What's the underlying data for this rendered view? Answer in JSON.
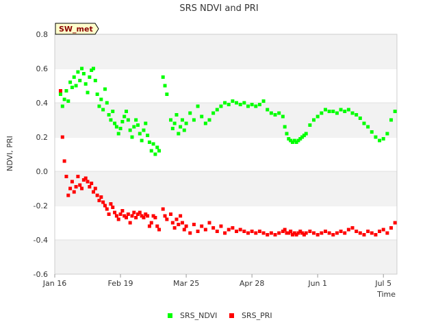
{
  "chart_data": {
    "type": "scatter",
    "title": "SRS NDVI and PRI",
    "site_label": "SW_met",
    "xlabel": "Time",
    "ylabel": "NDVI, PRI",
    "x_ticks": [
      "Jan 16",
      "Feb 19",
      "Mar 25",
      "Apr 28",
      "Jun 1",
      "Jul 5"
    ],
    "x_tick_days": [
      0,
      34,
      68,
      102,
      136,
      170
    ],
    "x_range_days": [
      0,
      177
    ],
    "xlim": [
      "Jan 16",
      "Jul 12"
    ],
    "y_ticks": [
      "-0.6",
      "-0.4",
      "-0.2",
      "0.0",
      "0.2",
      "0.4",
      "0.6",
      "0.8"
    ],
    "ylim": [
      -0.6,
      0.8
    ],
    "grid": "horizontal bands",
    "legend_position": "bottom-center",
    "colors": {
      "ndvi": "#00ff00",
      "pri": "#ff0000",
      "band": "#f2f2f2",
      "site_bg": "#ffffcc"
    },
    "series": [
      {
        "name": "SRS_NDVI",
        "color": "#00ff00",
        "points": [
          [
            3,
            0.45
          ],
          [
            4,
            0.38
          ],
          [
            5,
            0.42
          ],
          [
            6,
            0.47
          ],
          [
            7,
            0.41
          ],
          [
            8,
            0.52
          ],
          [
            9,
            0.49
          ],
          [
            10,
            0.55
          ],
          [
            11,
            0.5
          ],
          [
            12,
            0.58
          ],
          [
            13,
            0.53
          ],
          [
            14,
            0.6
          ],
          [
            15,
            0.57
          ],
          [
            16,
            0.51
          ],
          [
            17,
            0.46
          ],
          [
            18,
            0.55
          ],
          [
            19,
            0.59
          ],
          [
            20,
            0.6
          ],
          [
            21,
            0.53
          ],
          [
            22,
            0.45
          ],
          [
            23,
            0.38
          ],
          [
            24,
            0.42
          ],
          [
            25,
            0.36
          ],
          [
            26,
            0.48
          ],
          [
            27,
            0.4
          ],
          [
            28,
            0.33
          ],
          [
            29,
            0.3
          ],
          [
            30,
            0.35
          ],
          [
            31,
            0.28
          ],
          [
            32,
            0.26
          ],
          [
            33,
            0.22
          ],
          [
            34,
            0.25
          ],
          [
            35,
            0.29
          ],
          [
            36,
            0.32
          ],
          [
            37,
            0.35
          ],
          [
            38,
            0.3
          ],
          [
            39,
            0.24
          ],
          [
            40,
            0.2
          ],
          [
            41,
            0.26
          ],
          [
            42,
            0.3
          ],
          [
            43,
            0.27
          ],
          [
            44,
            0.22
          ],
          [
            45,
            0.18
          ],
          [
            46,
            0.24
          ],
          [
            47,
            0.28
          ],
          [
            48,
            0.21
          ],
          [
            49,
            0.17
          ],
          [
            50,
            0.12
          ],
          [
            51,
            0.16
          ],
          [
            52,
            0.1
          ],
          [
            53,
            0.14
          ],
          [
            54,
            0.12
          ],
          [
            56,
            0.55
          ],
          [
            57,
            0.5
          ],
          [
            58,
            0.45
          ],
          [
            60,
            0.3
          ],
          [
            61,
            0.25
          ],
          [
            62,
            0.28
          ],
          [
            63,
            0.33
          ],
          [
            64,
            0.22
          ],
          [
            65,
            0.26
          ],
          [
            66,
            0.3
          ],
          [
            67,
            0.24
          ],
          [
            68,
            0.28
          ],
          [
            70,
            0.34
          ],
          [
            72,
            0.3
          ],
          [
            74,
            0.38
          ],
          [
            76,
            0.32
          ],
          [
            78,
            0.28
          ],
          [
            80,
            0.3
          ],
          [
            82,
            0.34
          ],
          [
            84,
            0.36
          ],
          [
            86,
            0.38
          ],
          [
            88,
            0.4
          ],
          [
            90,
            0.39
          ],
          [
            92,
            0.41
          ],
          [
            94,
            0.4
          ],
          [
            96,
            0.39
          ],
          [
            98,
            0.4
          ],
          [
            100,
            0.38
          ],
          [
            102,
            0.39
          ],
          [
            104,
            0.38
          ],
          [
            106,
            0.39
          ],
          [
            108,
            0.41
          ],
          [
            110,
            0.36
          ],
          [
            112,
            0.34
          ],
          [
            114,
            0.33
          ],
          [
            116,
            0.34
          ],
          [
            118,
            0.32
          ],
          [
            119,
            0.26
          ],
          [
            120,
            0.22
          ],
          [
            121,
            0.19
          ],
          [
            122,
            0.18
          ],
          [
            123,
            0.17
          ],
          [
            124,
            0.18
          ],
          [
            125,
            0.17
          ],
          [
            126,
            0.18
          ],
          [
            127,
            0.19
          ],
          [
            128,
            0.2
          ],
          [
            129,
            0.21
          ],
          [
            130,
            0.22
          ],
          [
            132,
            0.27
          ],
          [
            134,
            0.3
          ],
          [
            136,
            0.32
          ],
          [
            138,
            0.34
          ],
          [
            140,
            0.36
          ],
          [
            142,
            0.35
          ],
          [
            144,
            0.35
          ],
          [
            146,
            0.34
          ],
          [
            148,
            0.36
          ],
          [
            150,
            0.35
          ],
          [
            152,
            0.36
          ],
          [
            154,
            0.34
          ],
          [
            156,
            0.33
          ],
          [
            158,
            0.31
          ],
          [
            160,
            0.28
          ],
          [
            162,
            0.26
          ],
          [
            164,
            0.23
          ],
          [
            166,
            0.2
          ],
          [
            168,
            0.18
          ],
          [
            170,
            0.19
          ],
          [
            172,
            0.22
          ],
          [
            174,
            0.3
          ],
          [
            176,
            0.35
          ]
        ]
      },
      {
        "name": "SRS_PRI",
        "color": "#ff0000",
        "points": [
          [
            3,
            0.47
          ],
          [
            4,
            0.2
          ],
          [
            5,
            0.06
          ],
          [
            6,
            -0.03
          ],
          [
            7,
            -0.14
          ],
          [
            8,
            -0.1
          ],
          [
            9,
            -0.06
          ],
          [
            10,
            -0.12
          ],
          [
            11,
            -0.09
          ],
          [
            12,
            -0.03
          ],
          [
            13,
            -0.08
          ],
          [
            14,
            -0.1
          ],
          [
            15,
            -0.05
          ],
          [
            16,
            -0.04
          ],
          [
            17,
            -0.06
          ],
          [
            18,
            -0.09
          ],
          [
            19,
            -0.07
          ],
          [
            20,
            -0.12
          ],
          [
            21,
            -0.1
          ],
          [
            22,
            -0.14
          ],
          [
            23,
            -0.17
          ],
          [
            24,
            -0.15
          ],
          [
            25,
            -0.18
          ],
          [
            26,
            -0.2
          ],
          [
            27,
            -0.22
          ],
          [
            28,
            -0.25
          ],
          [
            29,
            -0.19
          ],
          [
            30,
            -0.21
          ],
          [
            31,
            -0.24
          ],
          [
            32,
            -0.26
          ],
          [
            33,
            -0.28
          ],
          [
            34,
            -0.25
          ],
          [
            35,
            -0.23
          ],
          [
            36,
            -0.26
          ],
          [
            37,
            -0.27
          ],
          [
            38,
            -0.25
          ],
          [
            39,
            -0.3
          ],
          [
            40,
            -0.26
          ],
          [
            41,
            -0.24
          ],
          [
            42,
            -0.27
          ],
          [
            43,
            -0.25
          ],
          [
            44,
            -0.24
          ],
          [
            45,
            -0.26
          ],
          [
            46,
            -0.27
          ],
          [
            47,
            -0.25
          ],
          [
            48,
            -0.26
          ],
          [
            49,
            -0.32
          ],
          [
            50,
            -0.3
          ],
          [
            51,
            -0.26
          ],
          [
            52,
            -0.27
          ],
          [
            53,
            -0.32
          ],
          [
            54,
            -0.34
          ],
          [
            56,
            -0.22
          ],
          [
            57,
            -0.26
          ],
          [
            58,
            -0.28
          ],
          [
            60,
            -0.25
          ],
          [
            61,
            -0.3
          ],
          [
            62,
            -0.33
          ],
          [
            63,
            -0.28
          ],
          [
            64,
            -0.31
          ],
          [
            65,
            -0.26
          ],
          [
            66,
            -0.3
          ],
          [
            67,
            -0.34
          ],
          [
            68,
            -0.32
          ],
          [
            70,
            -0.36
          ],
          [
            72,
            -0.31
          ],
          [
            74,
            -0.35
          ],
          [
            76,
            -0.32
          ],
          [
            78,
            -0.34
          ],
          [
            80,
            -0.3
          ],
          [
            82,
            -0.33
          ],
          [
            84,
            -0.35
          ],
          [
            86,
            -0.32
          ],
          [
            88,
            -0.36
          ],
          [
            90,
            -0.34
          ],
          [
            92,
            -0.33
          ],
          [
            94,
            -0.35
          ],
          [
            96,
            -0.34
          ],
          [
            98,
            -0.35
          ],
          [
            100,
            -0.36
          ],
          [
            102,
            -0.35
          ],
          [
            104,
            -0.36
          ],
          [
            106,
            -0.35
          ],
          [
            108,
            -0.36
          ],
          [
            110,
            -0.37
          ],
          [
            112,
            -0.36
          ],
          [
            114,
            -0.37
          ],
          [
            116,
            -0.36
          ],
          [
            118,
            -0.35
          ],
          [
            119,
            -0.34
          ],
          [
            120,
            -0.36
          ],
          [
            121,
            -0.36
          ],
          [
            122,
            -0.35
          ],
          [
            123,
            -0.37
          ],
          [
            124,
            -0.36
          ],
          [
            125,
            -0.37
          ],
          [
            126,
            -0.36
          ],
          [
            127,
            -0.35
          ],
          [
            128,
            -0.36
          ],
          [
            129,
            -0.37
          ],
          [
            130,
            -0.36
          ],
          [
            132,
            -0.35
          ],
          [
            134,
            -0.36
          ],
          [
            136,
            -0.37
          ],
          [
            138,
            -0.36
          ],
          [
            140,
            -0.35
          ],
          [
            142,
            -0.36
          ],
          [
            144,
            -0.37
          ],
          [
            146,
            -0.36
          ],
          [
            148,
            -0.35
          ],
          [
            150,
            -0.36
          ],
          [
            152,
            -0.34
          ],
          [
            154,
            -0.33
          ],
          [
            156,
            -0.35
          ],
          [
            158,
            -0.36
          ],
          [
            160,
            -0.37
          ],
          [
            162,
            -0.35
          ],
          [
            164,
            -0.36
          ],
          [
            166,
            -0.37
          ],
          [
            168,
            -0.35
          ],
          [
            170,
            -0.34
          ],
          [
            172,
            -0.36
          ],
          [
            174,
            -0.33
          ],
          [
            176,
            -0.3
          ]
        ]
      }
    ]
  }
}
